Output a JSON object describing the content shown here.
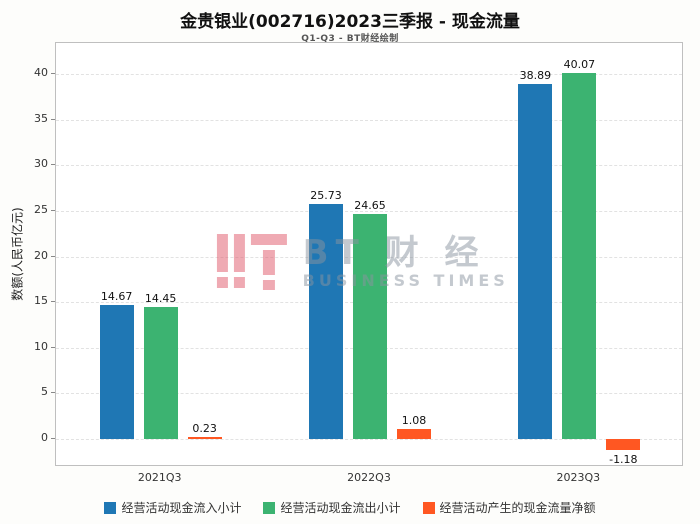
{
  "title": "金贵银业(002716)2023三季报 - 现金流量",
  "subtitle": "Q1-Q3 - BT财经绘制",
  "watermark": {
    "line1": "BT 财 经",
    "line2": "BUSINESS TIMES"
  },
  "chart_data": {
    "type": "bar",
    "title": "金贵银业(002716)2023三季报 - 现金流量",
    "subtitle": "Q1-Q3 - BT财经绘制",
    "categories": [
      "2021Q3",
      "2022Q3",
      "2023Q3"
    ],
    "series": [
      {
        "name": "经营活动现金流入小计",
        "color": "#1f77b4",
        "values": [
          14.67,
          25.73,
          38.89
        ]
      },
      {
        "name": "经营活动现金流出小计",
        "color": "#3cb371",
        "values": [
          14.45,
          24.65,
          40.07
        ]
      },
      {
        "name": "经营活动产生的现金流量净额",
        "color": "#ff5722",
        "values": [
          0.23,
          1.08,
          -1.18
        ]
      }
    ],
    "xlabel": "",
    "ylabel": "数额(人民币亿元)",
    "yticks": [
      0,
      5,
      10,
      15,
      20,
      25,
      30,
      35,
      40
    ],
    "ylim": [
      -3.07,
      43.4
    ],
    "grid": true,
    "legend_position": "bottom"
  }
}
